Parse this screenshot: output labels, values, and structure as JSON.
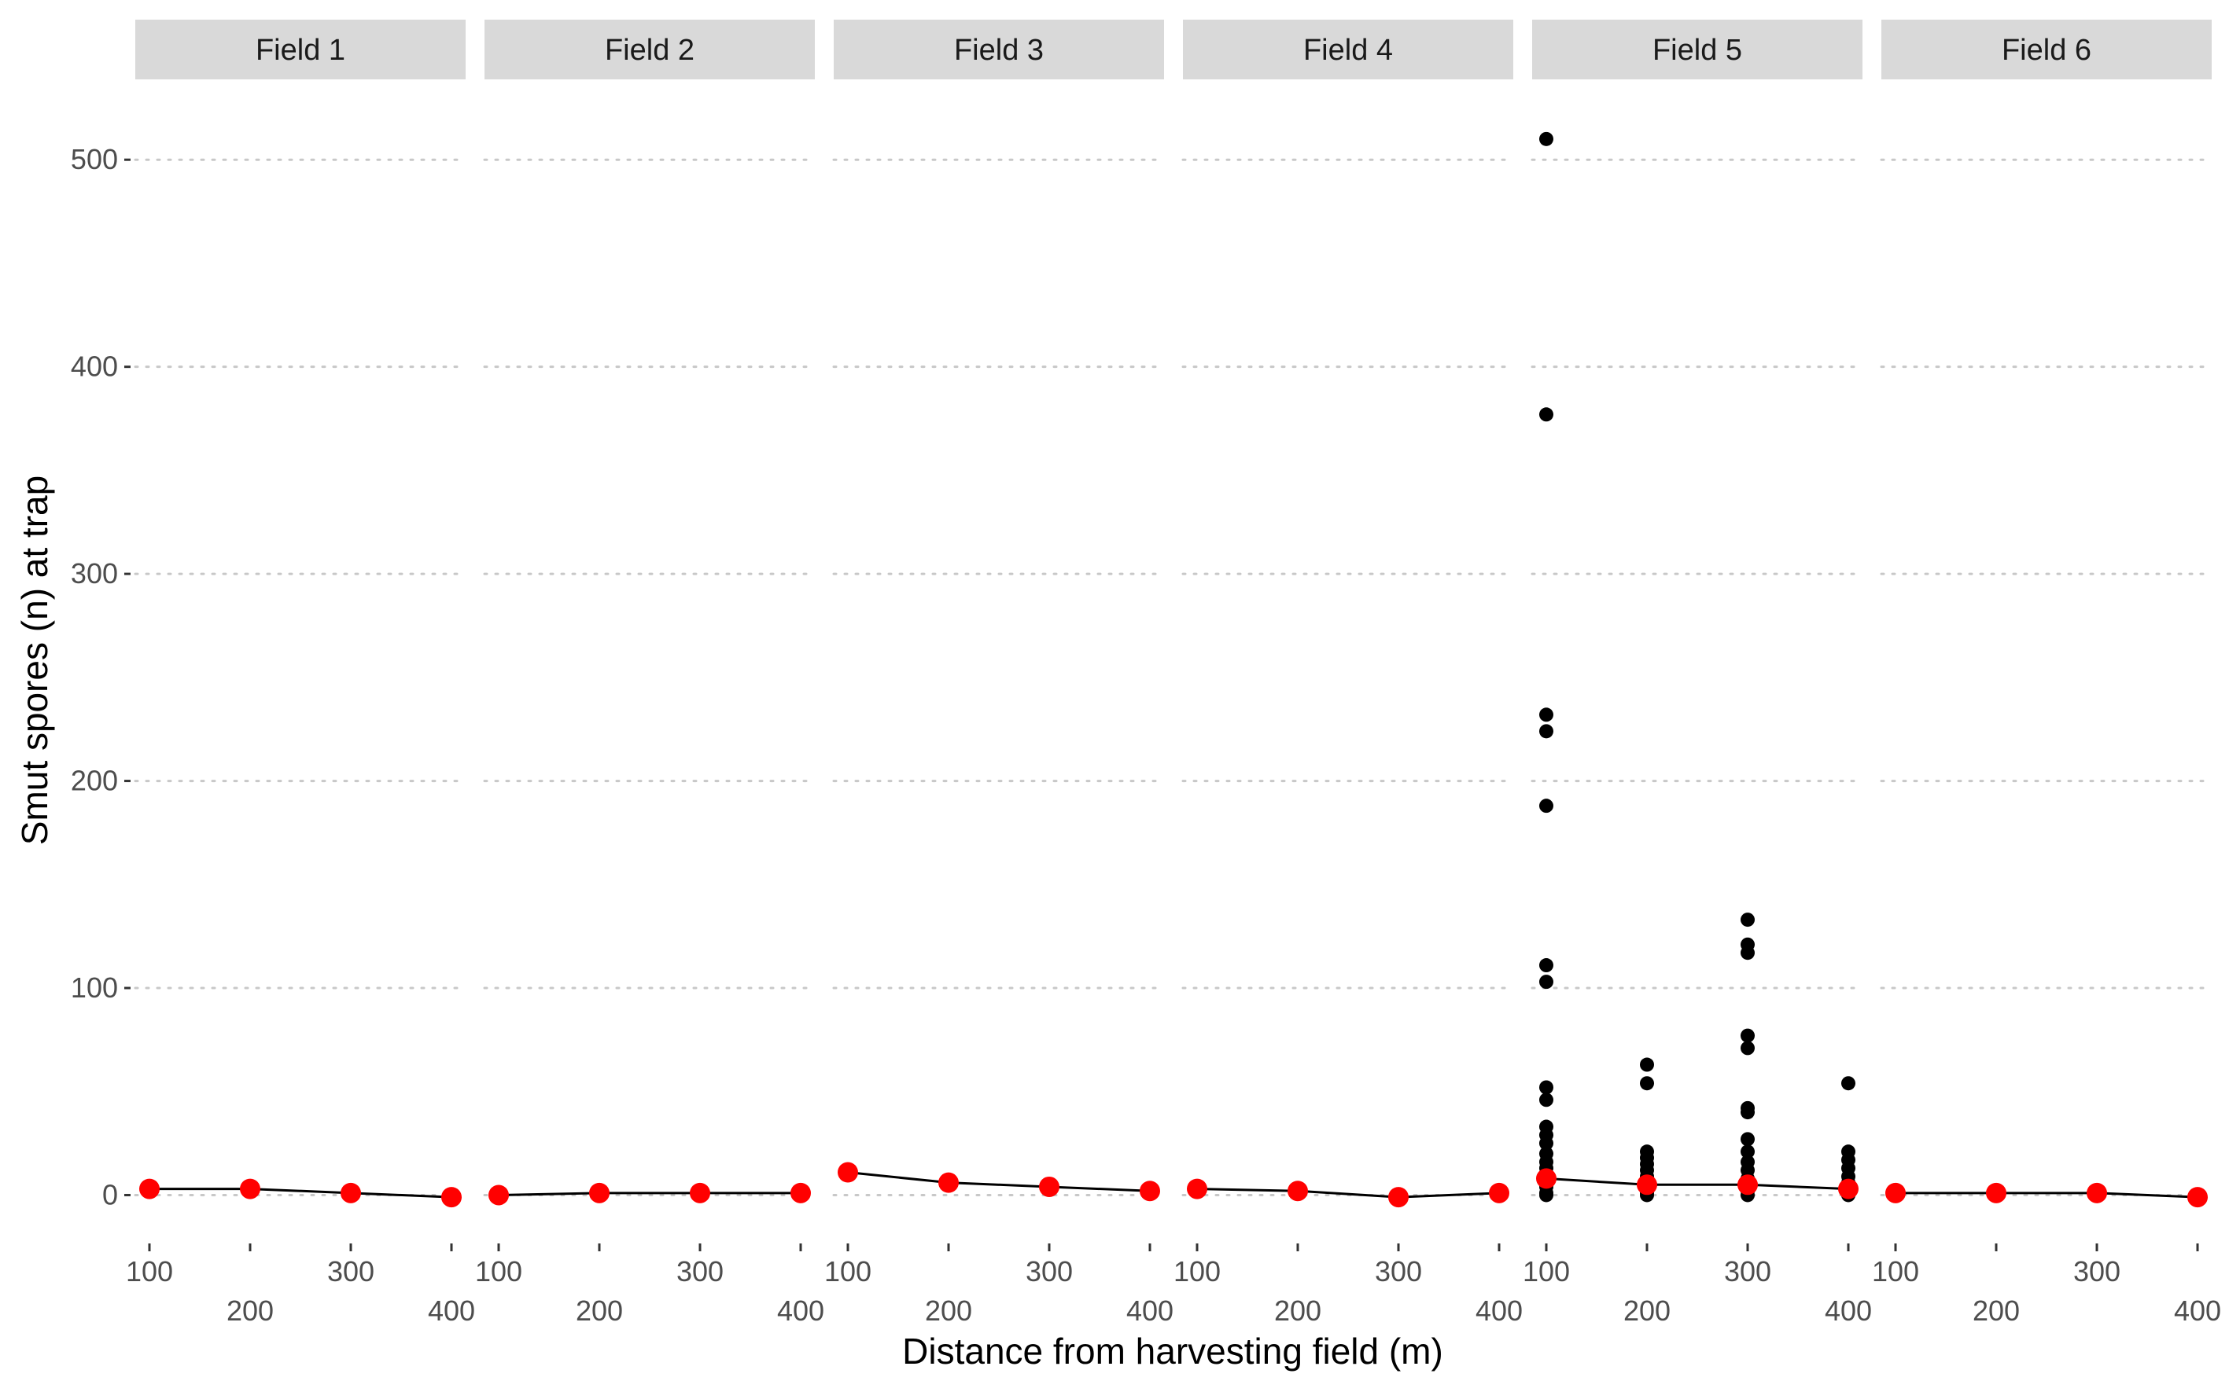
{
  "chart_data": {
    "type": "scatter",
    "xlabel": "Distance from harvesting field (m)",
    "ylabel": "Smut spores (n) at trap",
    "ylim": [
      -15,
      535
    ],
    "yticks": [
      0,
      100,
      200,
      300,
      400,
      500
    ],
    "x_categories": [
      "100",
      "200",
      "300",
      "400"
    ],
    "grid": "horizontal dotted major lines",
    "colors": {
      "points": "#000000",
      "means": "#ff0000",
      "line": "#000000",
      "strip": "#d9d9d9",
      "grid": "#c8c8c8"
    },
    "panels": [
      {
        "name": "Field 1",
        "points": [
          [],
          [],
          [],
          []
        ],
        "means": [
          3,
          3,
          1,
          -1
        ]
      },
      {
        "name": "Field 2",
        "points": [
          [],
          [],
          [],
          []
        ],
        "means": [
          0,
          1,
          1,
          1
        ]
      },
      {
        "name": "Field 3",
        "points": [
          [],
          [],
          [],
          []
        ],
        "means": [
          11,
          6,
          4,
          2
        ]
      },
      {
        "name": "Field 4",
        "points": [
          [],
          [],
          [],
          []
        ],
        "means": [
          3,
          2,
          -1,
          1
        ]
      },
      {
        "name": "Field 5",
        "points": [
          [
            510,
            377,
            232,
            224,
            188,
            111,
            103,
            52,
            46,
            33,
            29,
            25,
            20,
            16,
            13,
            10,
            7,
            4,
            1,
            0
          ],
          [
            63,
            54,
            21,
            18,
            15,
            12,
            9,
            6,
            3,
            1,
            0
          ],
          [
            133,
            121,
            117,
            77,
            71,
            42,
            40,
            27,
            21,
            16,
            12,
            8,
            5,
            2,
            0
          ],
          [
            54,
            21,
            17,
            13,
            9,
            6,
            3,
            1,
            0
          ]
        ],
        "means": [
          8,
          5,
          5,
          3
        ]
      },
      {
        "name": "Field 6",
        "points": [
          [],
          [],
          [],
          []
        ],
        "means": [
          1,
          1,
          1,
          -1
        ]
      }
    ]
  }
}
